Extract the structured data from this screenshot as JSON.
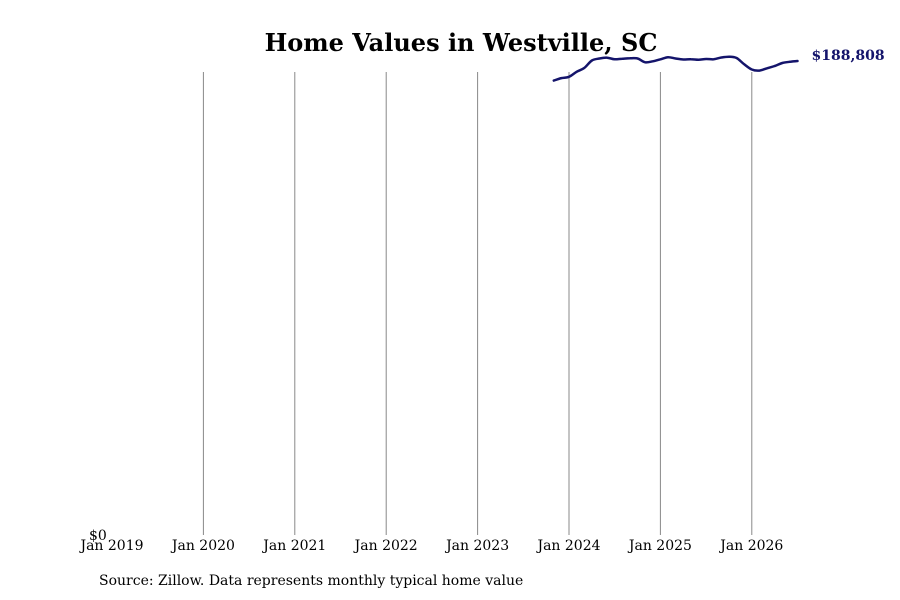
{
  "chart_data": {
    "type": "line",
    "title": "Home Values in Westville, SC",
    "xlabel": "",
    "ylabel": "",
    "x_ticks": [
      "Jan 2019",
      "Jan 2020",
      "Jan 2021",
      "Jan 2022",
      "Jan 2023",
      "Jan 2024",
      "Jan 2025",
      "Jan 2026"
    ],
    "xlim": [
      "2019-01",
      "2026-07"
    ],
    "y_tick_label": "$0",
    "ylim": [
      0,
      190000
    ],
    "grid": "vertical lines at each January",
    "legend": "none",
    "series": [
      {
        "color": "#14146b",
        "end_label": "$188,808",
        "points": [
          [
            "2023-11",
            181000
          ],
          [
            "2023-12",
            182000
          ],
          [
            "2024-01",
            182500
          ],
          [
            "2024-02",
            184500
          ],
          [
            "2024-03",
            186000
          ],
          [
            "2024-04",
            189000
          ],
          [
            "2024-05",
            189800
          ],
          [
            "2024-06",
            190100
          ],
          [
            "2024-07",
            189500
          ],
          [
            "2024-08",
            189700
          ],
          [
            "2024-09",
            189900
          ],
          [
            "2024-10",
            189800
          ],
          [
            "2024-11",
            188300
          ],
          [
            "2024-12",
            188700
          ],
          [
            "2025-01",
            189500
          ],
          [
            "2025-02",
            190300
          ],
          [
            "2025-03",
            189800
          ],
          [
            "2025-04",
            189400
          ],
          [
            "2025-05",
            189500
          ],
          [
            "2025-06",
            189300
          ],
          [
            "2025-07",
            189600
          ],
          [
            "2025-08",
            189500
          ],
          [
            "2025-09",
            190200
          ],
          [
            "2025-10",
            190500
          ],
          [
            "2025-11",
            190000
          ],
          [
            "2025-12",
            187500
          ],
          [
            "2026-01",
            185400
          ],
          [
            "2026-02",
            185000
          ],
          [
            "2026-03",
            185900
          ],
          [
            "2026-04",
            186800
          ],
          [
            "2026-05",
            188000
          ],
          [
            "2026-06",
            188500
          ],
          [
            "2026-07",
            188808
          ]
        ]
      }
    ]
  },
  "source_note": "Source: Zillow. Data represents monthly typical home value"
}
